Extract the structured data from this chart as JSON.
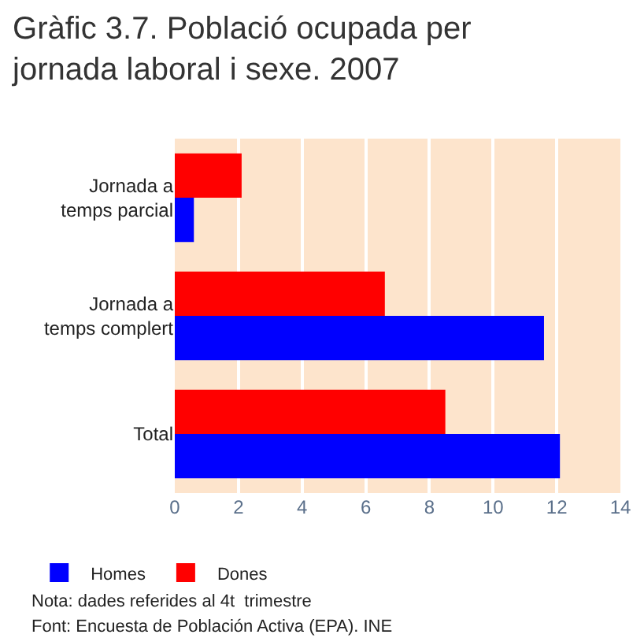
{
  "chart_data": {
    "type": "bar",
    "orientation": "horizontal",
    "title": "Gràfic 3.7. Població ocupada per jornada laboral i sexe. 2007",
    "categories": [
      "Jornada a temps parcial",
      "Jornada a temps complert",
      "Total"
    ],
    "series": [
      {
        "name": "Dones",
        "color": "#ff0000",
        "values": [
          2.1,
          6.6,
          8.5
        ]
      },
      {
        "name": "Homes",
        "color": "#0000ff",
        "values": [
          0.6,
          11.6,
          12.1
        ]
      }
    ],
    "xlim": [
      0,
      14
    ],
    "xticks": [
      0,
      2,
      4,
      6,
      8,
      10,
      12,
      14
    ],
    "grid": "x",
    "legend": "bottom",
    "annotations": [
      "Nota: dades referides al 4t  trimestre",
      "Font: Encuesta de Población Activa (EPA). INE"
    ]
  }
}
